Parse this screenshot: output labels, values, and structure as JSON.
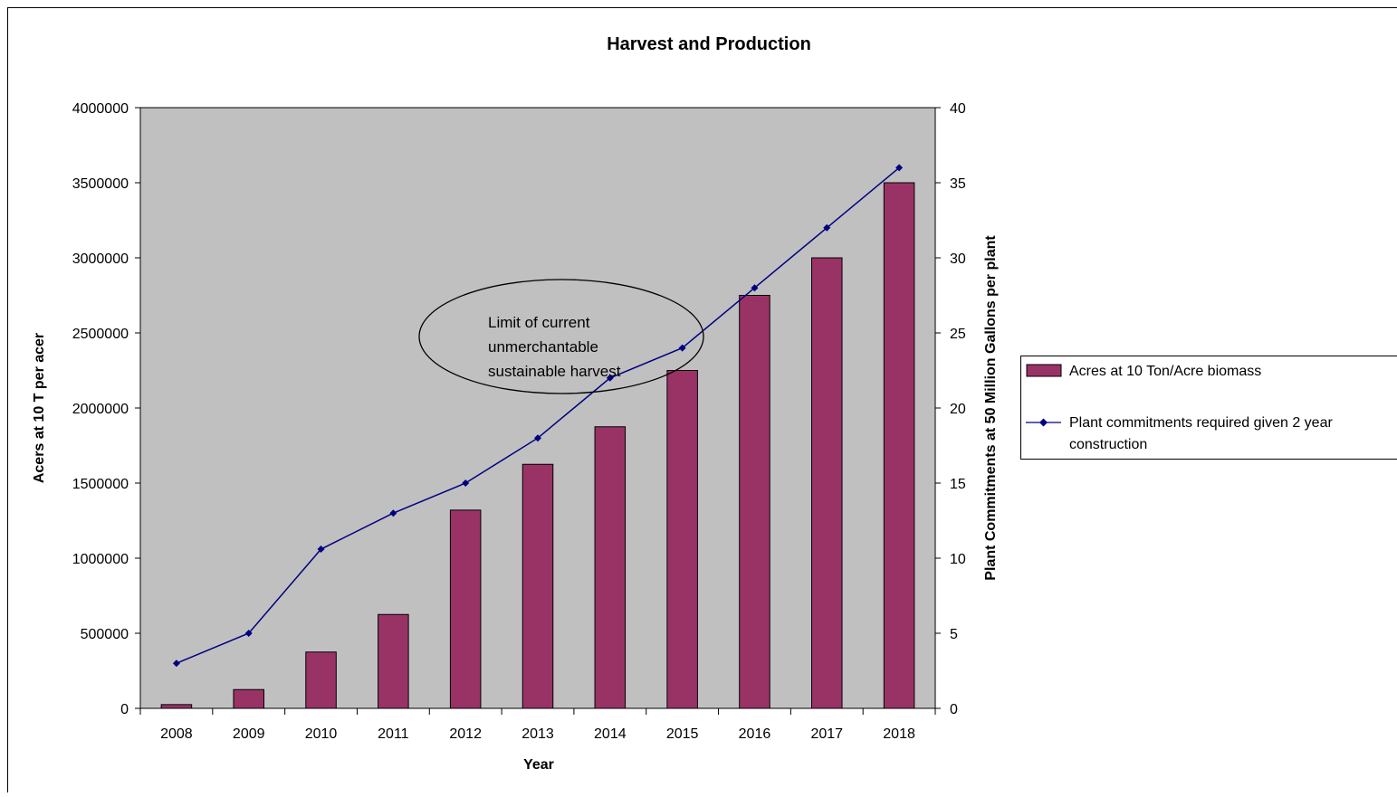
{
  "chart_data": {
    "type": "bar",
    "title": "Harvest and Production",
    "xlabel": "Year",
    "ylabel_left": "Acers at 10 T per acer",
    "ylabel_right": "Plant Commitments at 50 Million Gallons per plant",
    "categories": [
      "2008",
      "2009",
      "2010",
      "2011",
      "2012",
      "2013",
      "2014",
      "2015",
      "2016",
      "2017",
      "2018"
    ],
    "ylim_left": [
      0,
      4000000
    ],
    "yticks_left": [
      0,
      500000,
      1000000,
      1500000,
      2000000,
      2500000,
      3000000,
      3500000,
      4000000
    ],
    "ylim_right": [
      0,
      40
    ],
    "yticks_right": [
      0,
      5,
      10,
      15,
      20,
      25,
      30,
      35,
      40
    ],
    "grid": false,
    "plot_background": "#c0c0c0",
    "legend_position": "right",
    "series": [
      {
        "name": "Acres at 10 Ton/Acre biomass",
        "type": "bar",
        "axis": "left",
        "color": "#993366",
        "values": [
          25000,
          125000,
          375000,
          625000,
          1320000,
          1625000,
          1875000,
          2250000,
          2750000,
          3000000,
          3500000
        ]
      },
      {
        "name": "Plant commitments required given 2 year construction",
        "type": "line",
        "axis": "right",
        "color": "#000080",
        "marker": "diamond",
        "values": [
          3,
          5,
          10.6,
          13,
          15,
          18,
          22,
          24,
          28,
          32,
          36
        ]
      }
    ],
    "annotation": {
      "shape": "ellipse",
      "lines": [
        "Limit of current",
        "unmerchantable",
        "sustainable harvest"
      ]
    }
  }
}
